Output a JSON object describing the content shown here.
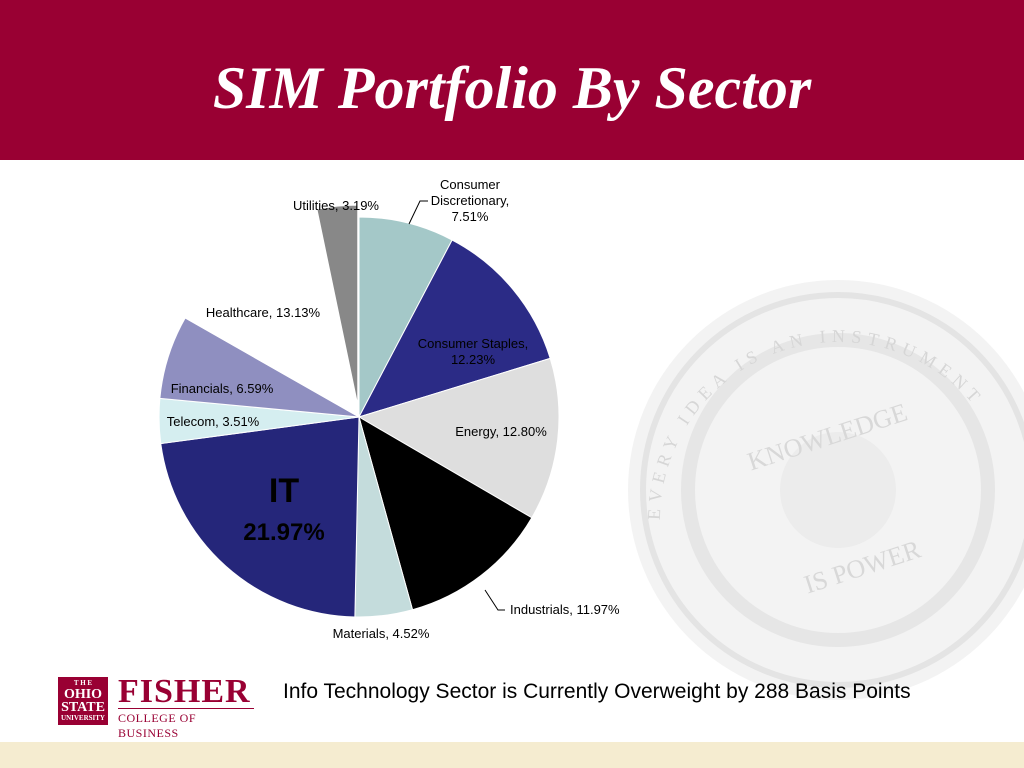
{
  "slide": {
    "title": "SIM Portfolio By Sector",
    "footer_text": "Info Technology Sector is Currently Overweight by 288 Basis Points",
    "colors": {
      "header": "#990033",
      "footer_bar": "#f5ecd0"
    }
  },
  "logo": {
    "the_label": "T H E",
    "ohio_label": "OHIO",
    "state_label": "STATE",
    "university_label": "UNIVERSITY",
    "fisher_label": "FISHER",
    "college_label": "COLLEGE OF BUSINESS"
  },
  "seal": {
    "ring_text": "EVERY IDEA IS AN INSTRUMENT",
    "motto_top": "KNOWLEDGE",
    "motto_bottom": "IS POWER"
  },
  "chart_data": {
    "type": "pie",
    "title": "",
    "start": "12 o'clock",
    "direction": "clockwise",
    "unit": "%",
    "slices": [
      {
        "name": "Consumer Discretionary",
        "value": 7.51,
        "label": [
          "Consumer",
          "Discretionary,",
          "7.51%"
        ],
        "color": "#a4c8c8"
      },
      {
        "name": "Consumer Staples",
        "value": 12.23,
        "label": [
          "Consumer Staples,",
          "12.23%"
        ],
        "color": "#2b2b86"
      },
      {
        "name": "Energy",
        "value": 12.8,
        "label": [
          "Energy, 12.80%"
        ],
        "color": "#dedede"
      },
      {
        "name": "Industrials",
        "value": 11.97,
        "label": [
          "Industrials, 11.97%"
        ],
        "color": "#000000"
      },
      {
        "name": "Materials",
        "value": 4.52,
        "label": [
          "Materials, 4.52%"
        ],
        "color": "#c4dcdc"
      },
      {
        "name": "IT",
        "value": 21.97,
        "label": [
          "IT",
          "21.97%"
        ],
        "color": "#25267a"
      },
      {
        "name": "Telecom",
        "value": 3.51,
        "label": [
          "Telecom, 3.51%"
        ],
        "color": "#d5eef0"
      },
      {
        "name": "Financials",
        "value": 6.59,
        "label": [
          "Financials, 6.59%"
        ],
        "color": "#8f8fc0"
      },
      {
        "name": "Healthcare",
        "value": 13.13,
        "label": [
          "Healthcare, 13.13%"
        ],
        "color": "#ffffff"
      },
      {
        "name": "Utilities",
        "value": 3.19,
        "label": [
          "Utilities, 3.19%"
        ],
        "color": "#888888"
      }
    ]
  }
}
